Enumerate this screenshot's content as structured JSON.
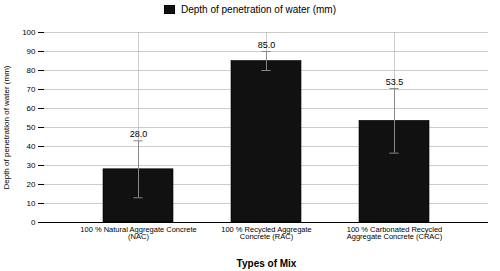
{
  "chart_data": {
    "type": "bar",
    "categories": [
      "100 % Natural Aggregate Concrete\n(NAC)",
      "100 % Recycled Aggregate\nConcrete (RAC)",
      "100 % Carbonated Recycled\nAggregate Concrete (CRAC)"
    ],
    "series": [
      {
        "name": "Depth of penetration of water (mm)",
        "color": "#111111",
        "values": [
          28.0,
          85.0,
          53.5
        ],
        "errors": [
          15.0,
          5.0,
          17.0
        ],
        "value_labels": [
          "28.0",
          "85.0",
          "53.5"
        ]
      }
    ],
    "xlabel": "Types of Mix",
    "ylabel": "Depth of penetration of water (mm)",
    "ylim": [
      0,
      100
    ],
    "yticks": [
      0,
      10,
      20,
      30,
      40,
      50,
      60,
      70,
      80,
      90,
      100
    ],
    "grid": true,
    "legend": "top",
    "data_labels": true
  }
}
